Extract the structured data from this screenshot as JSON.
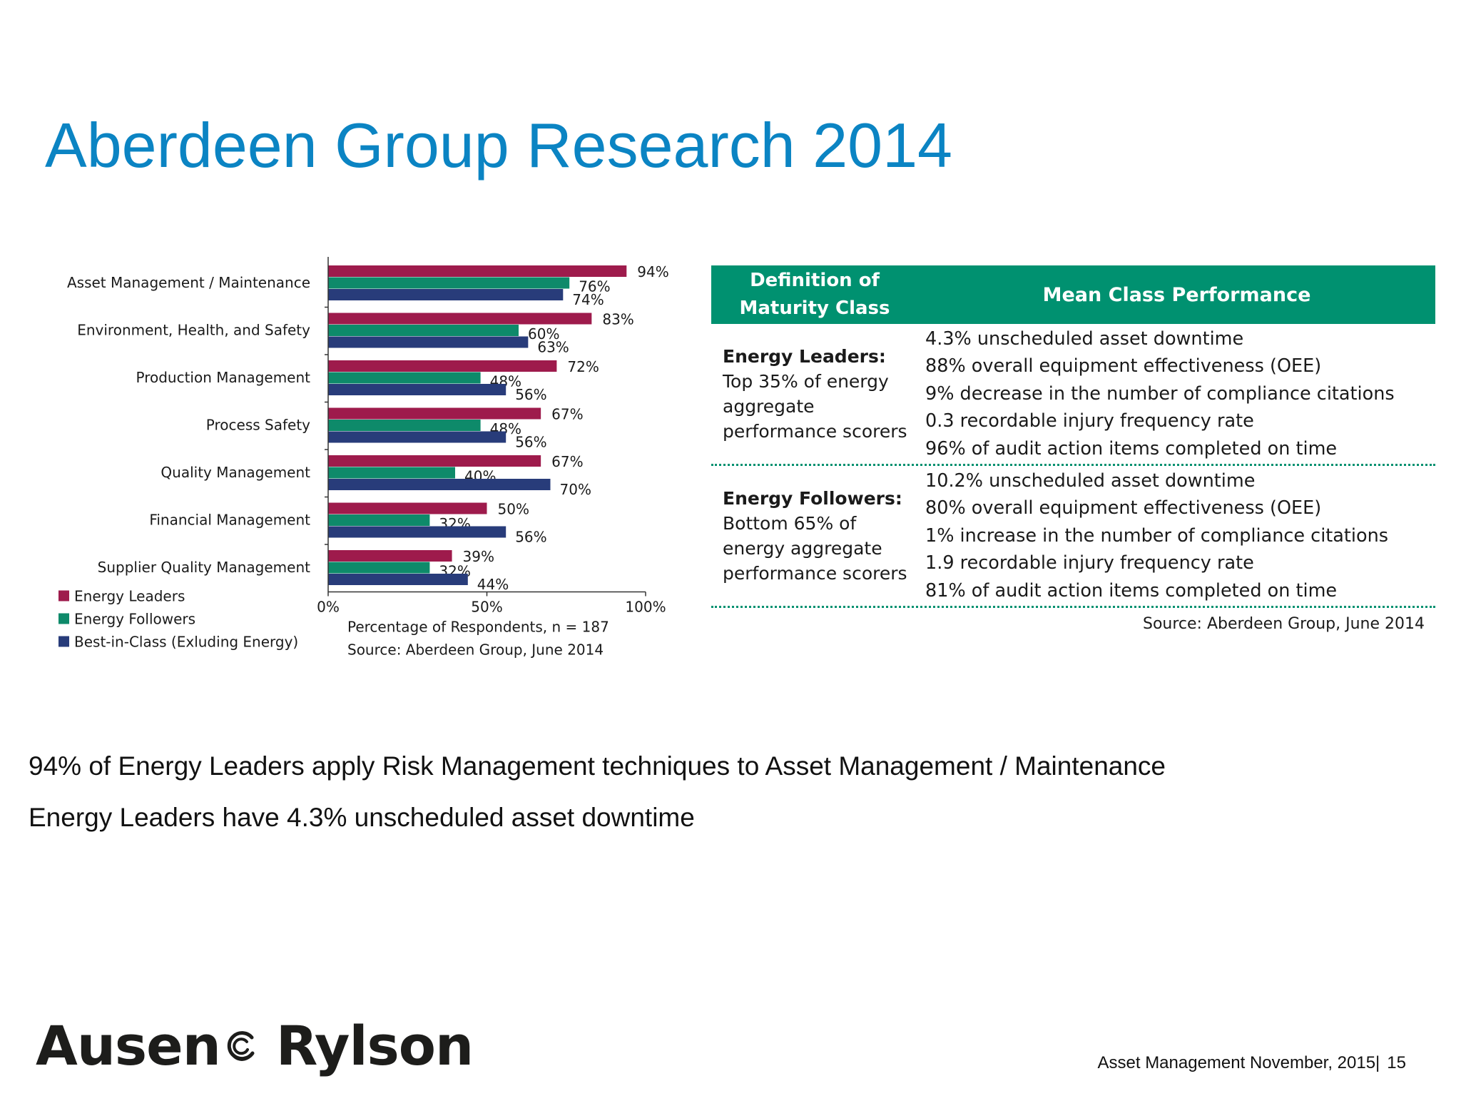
{
  "title": "Aberdeen Group Research 2014",
  "chart_data": {
    "type": "bar",
    "orientation": "horizontal",
    "categories": [
      "Asset Management / Maintenance",
      "Environment, Health, and Safety",
      "Production Management",
      "Process Safety",
      "Quality Management",
      "Financial Management",
      "Supplier Quality Management"
    ],
    "series": [
      {
        "name": "Energy Leaders",
        "color": "#9e1b4c",
        "values": [
          94,
          83,
          72,
          67,
          67,
          50,
          39
        ]
      },
      {
        "name": "Energy Followers",
        "color": "#0e8a6a",
        "values": [
          76,
          60,
          48,
          48,
          40,
          32,
          32
        ]
      },
      {
        "name": "Best-in-Class (Exluding Energy)",
        "color": "#283c7a",
        "values": [
          74,
          63,
          56,
          56,
          70,
          56,
          44
        ]
      }
    ],
    "value_labels": [
      [
        "94%",
        "76%",
        "74%"
      ],
      [
        "83%",
        "60%",
        "63%"
      ],
      [
        "72%",
        "48%",
        "56%"
      ],
      [
        "67%",
        "48%",
        "56%"
      ],
      [
        "67%",
        "40%",
        "70%"
      ],
      [
        "50%",
        "32%",
        "56%"
      ],
      [
        "39%",
        "32%",
        "44%"
      ]
    ],
    "x_ticks": [
      "0%",
      "50%",
      "100%"
    ],
    "xlim": [
      0,
      100
    ],
    "xlabel": "Percentage of Respondents, n = 187",
    "source": "Source: Aberdeen Group, June 2014",
    "legend_position": "bottom-left"
  },
  "table": {
    "header_definition": "Definition of Maturity Class",
    "header_performance": "Mean Class Performance",
    "rows": [
      {
        "name": "Energy Leaders:",
        "description": "Top 35% of energy aggregate performance scorers",
        "performance": [
          "4.3% unscheduled asset downtime",
          "88% overall equipment effectiveness (OEE)",
          "9% decrease in the number of compliance citations",
          "0.3 recordable injury frequency rate",
          "96% of audit action items completed on time"
        ]
      },
      {
        "name": "Energy Followers:",
        "description": "Bottom 65% of energy aggregate performance scorers",
        "performance": [
          "10.2% unscheduled asset downtime",
          "80% overall equipment effectiveness (OEE)",
          "1% increase in the number of compliance citations",
          "1.9 recordable injury frequency rate",
          "81% of audit action items completed on time"
        ]
      }
    ],
    "source": "Source: Aberdeen Group, June 2014"
  },
  "summary": [
    "94% of Energy Leaders apply Risk Management techniques to Asset Management / Maintenance",
    "Energy Leaders have 4.3% unscheduled asset downtime"
  ],
  "logo": {
    "part1": "Ausen",
    "part2": "Rylson"
  },
  "footer": {
    "text": "Asset Management  November, 2015|",
    "page": "15"
  }
}
